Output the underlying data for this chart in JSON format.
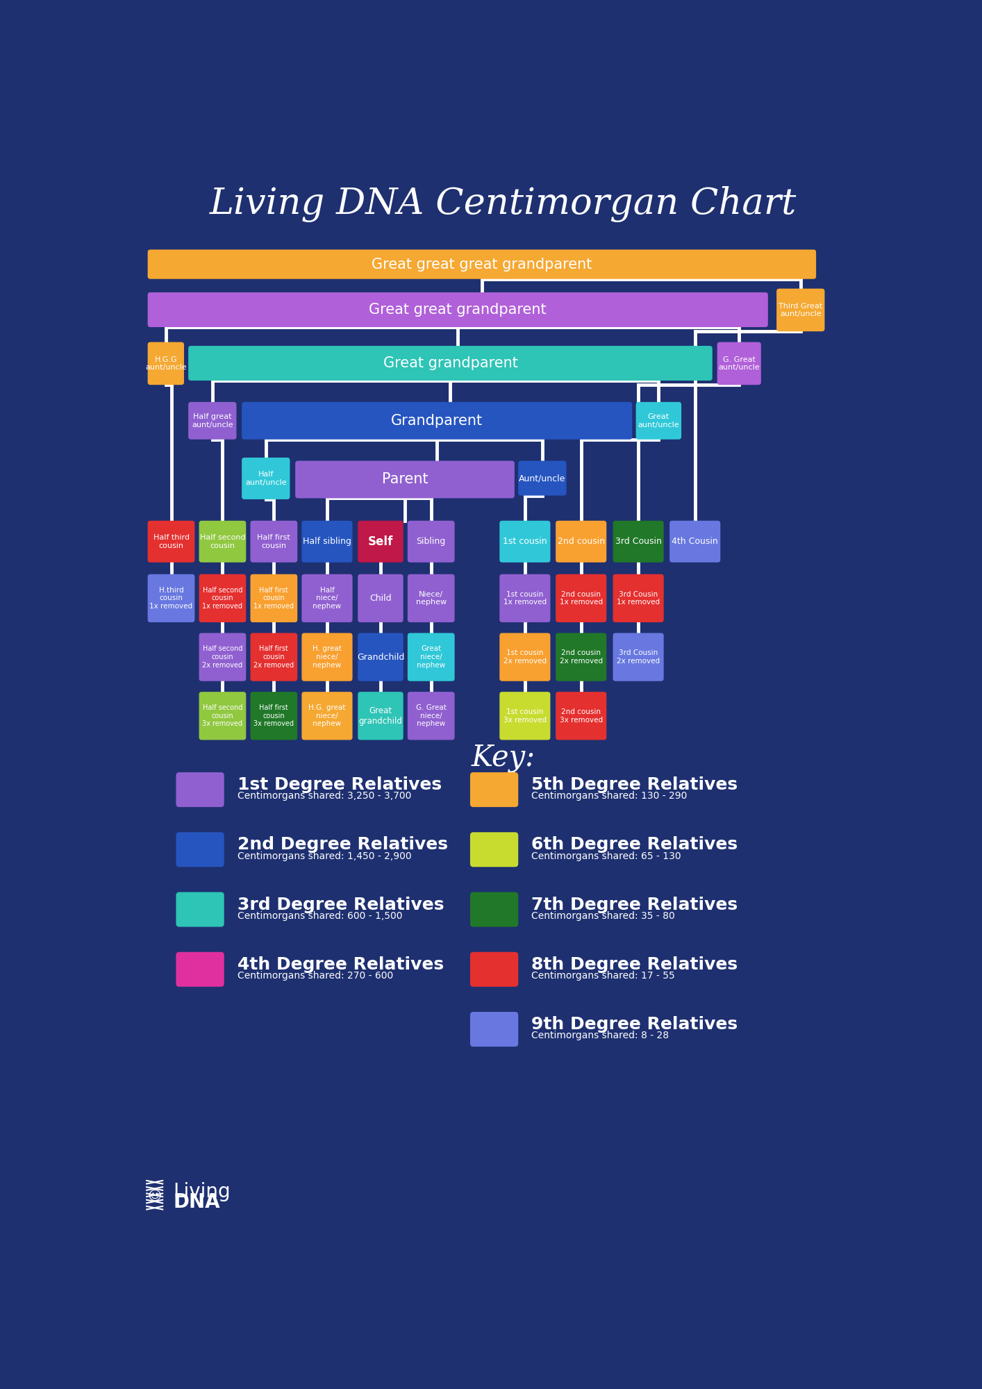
{
  "title": "Living DNA Centimorgan Chart",
  "bg_color": "#1e3070",
  "orange": "#f5a832",
  "purple": "#b060d8",
  "teal": "#2ec4b6",
  "blue": "#2655c0",
  "purple_med": "#9060d0",
  "red": "#e53030",
  "green_yel": "#90c840",
  "yel_grn": "#c8dc30",
  "dark_green": "#207828",
  "teal2": "#30c8d8",
  "orange2": "#f8a030",
  "blue_light": "#6878e0",
  "crimson": "#c01848",
  "pink": "#e030a0",
  "key_items": [
    {
      "label": "1st Degree Relatives",
      "sub": "Centimorgans shared: 3,250 - 3,700",
      "color": "#9060d0"
    },
    {
      "label": "2nd Degree Relatives",
      "sub": "Centimorgans shared: 1,450 - 2,900",
      "color": "#2655c0"
    },
    {
      "label": "3rd Degree Relatives",
      "sub": "Centimorgans shared: 600 - 1,500",
      "color": "#2ec4b6"
    },
    {
      "label": "4th Degree Relatives",
      "sub": "Centimorgans shared: 270 - 600",
      "color": "#e030a0"
    },
    {
      "label": "5th Degree Relatives",
      "sub": "Centimorgans shared: 130 - 290",
      "color": "#f5a832"
    },
    {
      "label": "6th Degree Relatives",
      "sub": "Centimorgans shared: 65 - 130",
      "color": "#c8dc30"
    },
    {
      "label": "7th Degree Relatives",
      "sub": "Centimorgans shared: 35 - 80",
      "color": "#207828"
    },
    {
      "label": "8th Degree Relatives",
      "sub": "Centimorgans shared: 17 - 55",
      "color": "#e53030"
    },
    {
      "label": "9th Degree Relatives",
      "sub": "Centimorgans shared: 8 - 28",
      "color": "#6878e0"
    }
  ]
}
